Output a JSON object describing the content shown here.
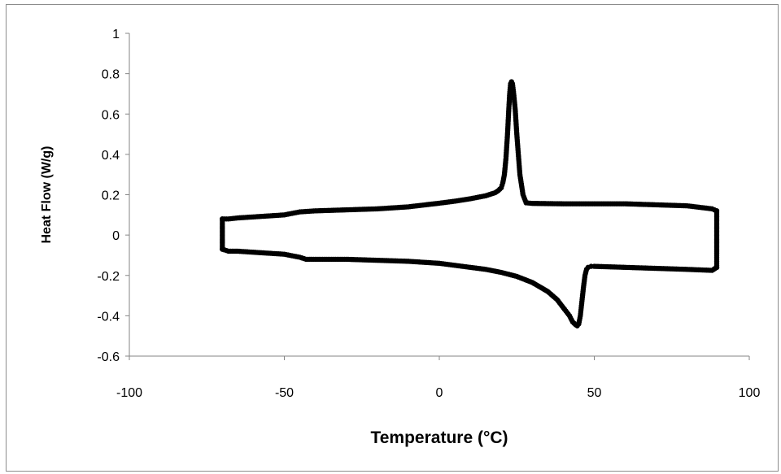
{
  "chart_data": {
    "type": "scatter",
    "xlabel": "Temperature (°C)",
    "ylabel": "Heat Flow (W/g)",
    "xlim": [
      -100,
      100
    ],
    "ylim": [
      -0.6,
      1
    ],
    "x_ticks": [
      -100,
      -50,
      0,
      50,
      100
    ],
    "y_ticks": [
      -0.6,
      -0.4,
      -0.2,
      0,
      0.2,
      0.4,
      0.6,
      0.8,
      1
    ],
    "x_tick_labels": [
      "-100",
      "-50",
      "0",
      "50",
      "100"
    ],
    "y_tick_labels": [
      "-0.6",
      "-0.4",
      "-0.2",
      "0",
      "0.2",
      "0.4",
      "0.6",
      "0.8",
      "1"
    ],
    "grid": false,
    "legend": "none",
    "marker_color": "#000000",
    "series": [
      {
        "segment": "upper (cooling)",
        "x": [
          89.5,
          88,
          80,
          70,
          60,
          50,
          40,
          30,
          28,
          27,
          26,
          25,
          24.5,
          24,
          23.6,
          23.3,
          23,
          22.7,
          22.4,
          22,
          21.5,
          21,
          20.5,
          20,
          19,
          18,
          15,
          10,
          5,
          0,
          -10,
          -20,
          -30,
          -40,
          -45,
          -50,
          -55,
          -60,
          -65,
          -68,
          -70
        ],
        "y": [
          0.12,
          0.13,
          0.145,
          0.15,
          0.155,
          0.155,
          0.155,
          0.157,
          0.16,
          0.2,
          0.3,
          0.5,
          0.62,
          0.7,
          0.75,
          0.76,
          0.75,
          0.7,
          0.62,
          0.5,
          0.38,
          0.3,
          0.26,
          0.235,
          0.22,
          0.21,
          0.195,
          0.18,
          0.168,
          0.158,
          0.14,
          0.13,
          0.125,
          0.12,
          0.115,
          0.1,
          0.095,
          0.09,
          0.085,
          0.08,
          0.08
        ]
      },
      {
        "segment": "left edge",
        "x": [
          -70,
          -70,
          -70,
          -70,
          -70
        ],
        "y": [
          0.08,
          0.04,
          0,
          -0.04,
          -0.07
        ]
      },
      {
        "segment": "lower (heating)",
        "x": [
          -70,
          -68,
          -65,
          -60,
          -55,
          -50,
          -45,
          -43,
          -40,
          -30,
          -20,
          -10,
          0,
          5,
          10,
          15,
          20,
          25,
          30,
          35,
          38,
          40,
          42,
          43,
          44,
          44.5,
          45,
          45.5,
          46,
          46.5,
          47,
          47.5,
          48,
          49,
          50,
          60,
          70,
          80,
          88,
          89.5
        ],
        "y": [
          -0.07,
          -0.08,
          -0.08,
          -0.085,
          -0.09,
          -0.095,
          -0.11,
          -0.12,
          -0.12,
          -0.12,
          -0.125,
          -0.13,
          -0.14,
          -0.15,
          -0.16,
          -0.17,
          -0.185,
          -0.205,
          -0.235,
          -0.28,
          -0.32,
          -0.36,
          -0.4,
          -0.43,
          -0.445,
          -0.45,
          -0.44,
          -0.4,
          -0.33,
          -0.26,
          -0.2,
          -0.17,
          -0.16,
          -0.155,
          -0.155,
          -0.16,
          -0.165,
          -0.17,
          -0.175,
          -0.16
        ]
      },
      {
        "segment": "right edge",
        "x": [
          89.5,
          89.5,
          89.5,
          89.5,
          89.5,
          89.5,
          89.5
        ],
        "y": [
          -0.16,
          -0.1,
          -0.05,
          0,
          0.05,
          0.1,
          0.12
        ]
      }
    ]
  }
}
